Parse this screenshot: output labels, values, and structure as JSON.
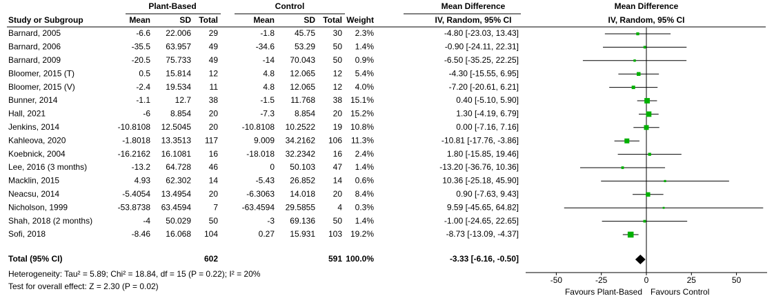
{
  "table": {
    "group_headers": [
      "Plant-Based",
      "Control",
      "Mean Difference"
    ],
    "columns": [
      "Study or Subgroup",
      "Mean",
      "SD",
      "Total",
      "Mean",
      "SD",
      "Total",
      "Weight",
      "IV, Random, 95% CI"
    ],
    "rows": [
      [
        "Barnard, 2005",
        "-6.6",
        "22.006",
        "29",
        "-1.8",
        "45.75",
        "30",
        "2.3%",
        "-4.80 [-23.03, 13.43]"
      ],
      [
        "Barnard, 2006",
        "-35.5",
        "63.957",
        "49",
        "-34.6",
        "53.29",
        "50",
        "1.4%",
        "-0.90 [-24.11, 22.31]"
      ],
      [
        "Barnard, 2009",
        "-20.5",
        "75.733",
        "49",
        "-14",
        "70.043",
        "50",
        "0.9%",
        "-6.50 [-35.25, 22.25]"
      ],
      [
        "Bloomer, 2015 (T)",
        "0.5",
        "15.814",
        "12",
        "4.8",
        "12.065",
        "12",
        "5.4%",
        "-4.30 [-15.55, 6.95]"
      ],
      [
        "Bloomer, 2015 (V)",
        "-2.4",
        "19.534",
        "11",
        "4.8",
        "12.065",
        "12",
        "4.0%",
        "-7.20 [-20.61, 6.21]"
      ],
      [
        "Bunner, 2014",
        "-1.1",
        "12.7",
        "38",
        "-1.5",
        "11.768",
        "38",
        "15.1%",
        "0.40 [-5.10, 5.90]"
      ],
      [
        "Hall, 2021",
        "-6",
        "8.854",
        "20",
        "-7.3",
        "8.854",
        "20",
        "15.2%",
        "1.30 [-4.19, 6.79]"
      ],
      [
        "Jenkins, 2014",
        "-10.8108",
        "12.5045",
        "20",
        "-10.8108",
        "10.2522",
        "19",
        "10.8%",
        "0.00 [-7.16, 7.16]"
      ],
      [
        "Kahleova, 2020",
        "-1.8018",
        "13.3513",
        "117",
        "9.009",
        "34.2162",
        "106",
        "11.3%",
        "-10.81 [-17.76, -3.86]"
      ],
      [
        "Koebnick, 2004",
        "-16.2162",
        "16.1081",
        "16",
        "-18.018",
        "32.2342",
        "16",
        "2.4%",
        "1.80 [-15.85, 19.46]"
      ],
      [
        "Lee, 2016 (3 months)",
        "-13.2",
        "64.728",
        "46",
        "0",
        "50.103",
        "47",
        "1.4%",
        "-13.20 [-36.76, 10.36]"
      ],
      [
        "Macklin, 2015",
        "4.93",
        "62.302",
        "14",
        "-5.43",
        "26.852",
        "14",
        "0.6%",
        "10.36 [-25.18, 45.90]"
      ],
      [
        "Neacsu, 2014",
        "-5.4054",
        "13.4954",
        "20",
        "-6.3063",
        "14.018",
        "20",
        "8.4%",
        "0.90 [-7.63, 9.43]"
      ],
      [
        "Nicholson, 1999",
        "-53.8738",
        "63.4594",
        "7",
        "-63.4594",
        "29.5855",
        "4",
        "0.3%",
        "9.59 [-45.65, 64.82]"
      ],
      [
        "Shah, 2018 (2 months)",
        "-4",
        "50.029",
        "50",
        "-3",
        "69.136",
        "50",
        "1.4%",
        "-1.00 [-24.65, 22.65]"
      ],
      [
        "Sofi, 2018",
        "-8.46",
        "16.068",
        "104",
        "0.27",
        "15.931",
        "103",
        "19.2%",
        "-8.73 [-13.09, -4.37]"
      ]
    ],
    "total": {
      "label": "Total (95% CI)",
      "pb_total": "602",
      "c_total": "591",
      "weight": "100.0%",
      "md": "-3.33 [-6.16, -0.50]"
    },
    "heterogeneity": "Heterogeneity: Tau² = 5.89; Chi² = 18.84, df = 15 (P = 0.22); I² = 20%",
    "overall_effect": "Test for overall effect: Z = 2.30 (P = 0.02)"
  },
  "chart_data": {
    "type": "forest",
    "title": "Mean Difference",
    "subtitle": "IV, Random, 95% CI",
    "values": [
      -4.8,
      -0.9,
      -6.5,
      -4.3,
      -7.2,
      0.4,
      1.3,
      0.0,
      -10.81,
      1.8,
      -13.2,
      10.36,
      0.9,
      9.59,
      -1.0,
      -8.73
    ],
    "lower": [
      -23.03,
      -24.11,
      -35.25,
      -15.55,
      -20.61,
      -5.1,
      -4.19,
      -7.16,
      -17.76,
      -15.85,
      -36.76,
      -25.18,
      -7.63,
      -45.65,
      -24.65,
      -13.09
    ],
    "upper": [
      13.43,
      22.31,
      22.25,
      6.95,
      6.21,
      5.9,
      6.79,
      7.16,
      -3.86,
      19.46,
      10.36,
      45.9,
      9.43,
      64.82,
      22.65,
      -4.37
    ],
    "weights": [
      2.3,
      1.4,
      0.9,
      5.4,
      4.0,
      15.1,
      15.2,
      10.8,
      11.3,
      2.4,
      1.4,
      0.6,
      8.4,
      0.3,
      1.4,
      19.2
    ],
    "color": "#00b000",
    "total": {
      "value": -3.33,
      "lower": -6.16,
      "upper": -0.5,
      "color": "#000000"
    },
    "xlim": [
      -67,
      67
    ],
    "xticks": [
      -50,
      -25,
      0,
      25,
      50
    ],
    "xlabel_left": "Favours Plant-Based",
    "xlabel_right": "Favours Control"
  }
}
